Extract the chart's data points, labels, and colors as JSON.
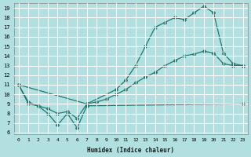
{
  "xlabel": "Humidex (Indice chaleur)",
  "background_color": "#b2e0e0",
  "grid_color": "#ffffff",
  "line_color": "#1a7a6e",
  "xlim": [
    -0.5,
    23.5
  ],
  "ylim": [
    5.8,
    19.5
  ],
  "xticks": [
    0,
    1,
    2,
    3,
    4,
    5,
    6,
    7,
    8,
    9,
    10,
    11,
    12,
    13,
    14,
    15,
    16,
    17,
    18,
    19,
    20,
    21,
    22,
    23
  ],
  "yticks": [
    6,
    7,
    8,
    9,
    10,
    11,
    12,
    13,
    14,
    15,
    16,
    17,
    18,
    19
  ],
  "line1_x": [
    0,
    1,
    2,
    3,
    4,
    5,
    6,
    7,
    8,
    9,
    10,
    11,
    12,
    13,
    14,
    15,
    16,
    17,
    18,
    19,
    20,
    21,
    22,
    23
  ],
  "line1_y": [
    11,
    9.2,
    8.8,
    8.5,
    8.0,
    8.2,
    7.5,
    9.0,
    9.2,
    9.5,
    10.0,
    10.5,
    11.2,
    11.8,
    12.3,
    13.0,
    13.5,
    14.0,
    14.2,
    14.5,
    14.3,
    13.2,
    13.0,
    13.0
  ],
  "line2_x": [
    0,
    7,
    10,
    11,
    12,
    13,
    14,
    15,
    16,
    17,
    18,
    19,
    20,
    21,
    22,
    23
  ],
  "line2_y": [
    11,
    9.0,
    10.5,
    11.5,
    13.0,
    15.0,
    17.0,
    17.5,
    18.0,
    17.8,
    18.5,
    19.2,
    18.5,
    14.3,
    13.2,
    13.0
  ],
  "line3_x": [
    0,
    1,
    2,
    3,
    4,
    5,
    6,
    7,
    23
  ],
  "line3_y": [
    11,
    9.0,
    8.8,
    8.0,
    6.8,
    8.0,
    6.5,
    8.8,
    9.0
  ]
}
